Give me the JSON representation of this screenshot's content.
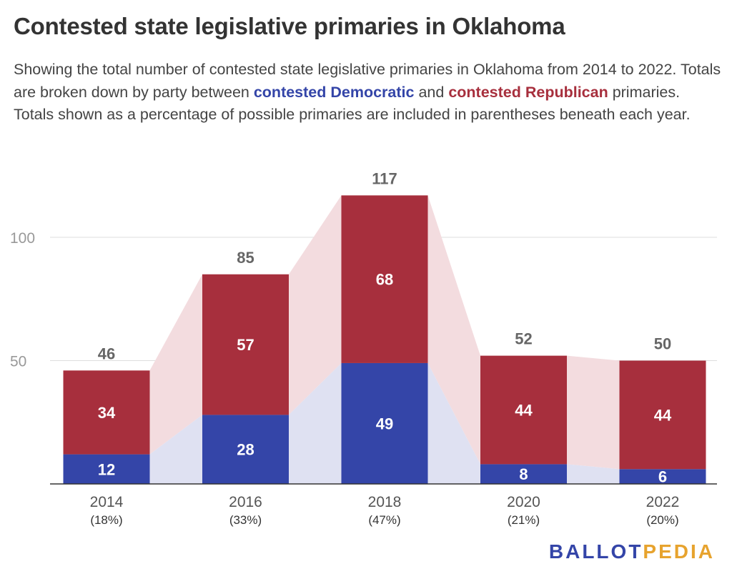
{
  "title": "Contested state legislative primaries in Oklahoma",
  "subtitle": {
    "text_before": "Showing the total number of contested state legislative primaries in Oklahoma from 2014 to 2022. Totals are broken down by party between ",
    "dem_label": "contested Democratic",
    "text_middle": " and ",
    "rep_label": "contested Republican",
    "text_after": " primaries. Totals shown as a percentage of possible primaries are included in parentheses beneath each year."
  },
  "colors": {
    "democratic": "#3445a8",
    "republican": "#a72f3d",
    "democratic_area": "#dfe1f2",
    "republican_area": "#f3dcdf",
    "total_label": "#666666",
    "grid": "#dddddd",
    "axis_tick": "#999999"
  },
  "logo": {
    "part1": "BALLOT",
    "part2": "PEDIA"
  },
  "chart_data": {
    "type": "bar",
    "stacked": true,
    "categories": [
      "2014",
      "2016",
      "2018",
      "2020",
      "2022"
    ],
    "category_sublabels": [
      "(18%)",
      "(33%)",
      "(47%)",
      "(21%)",
      "(20%)"
    ],
    "series": [
      {
        "values": [
          12,
          28,
          49,
          8,
          6
        ],
        "color": "#3445a8"
      },
      {
        "values": [
          34,
          57,
          68,
          44,
          44
        ],
        "color": "#a72f3d"
      }
    ],
    "totals": [
      46,
      85,
      117,
      52,
      50
    ],
    "yticks": [
      50,
      100
    ],
    "ylim": [
      0,
      130
    ],
    "grid": true,
    "legend": "inline in subtitle text"
  }
}
